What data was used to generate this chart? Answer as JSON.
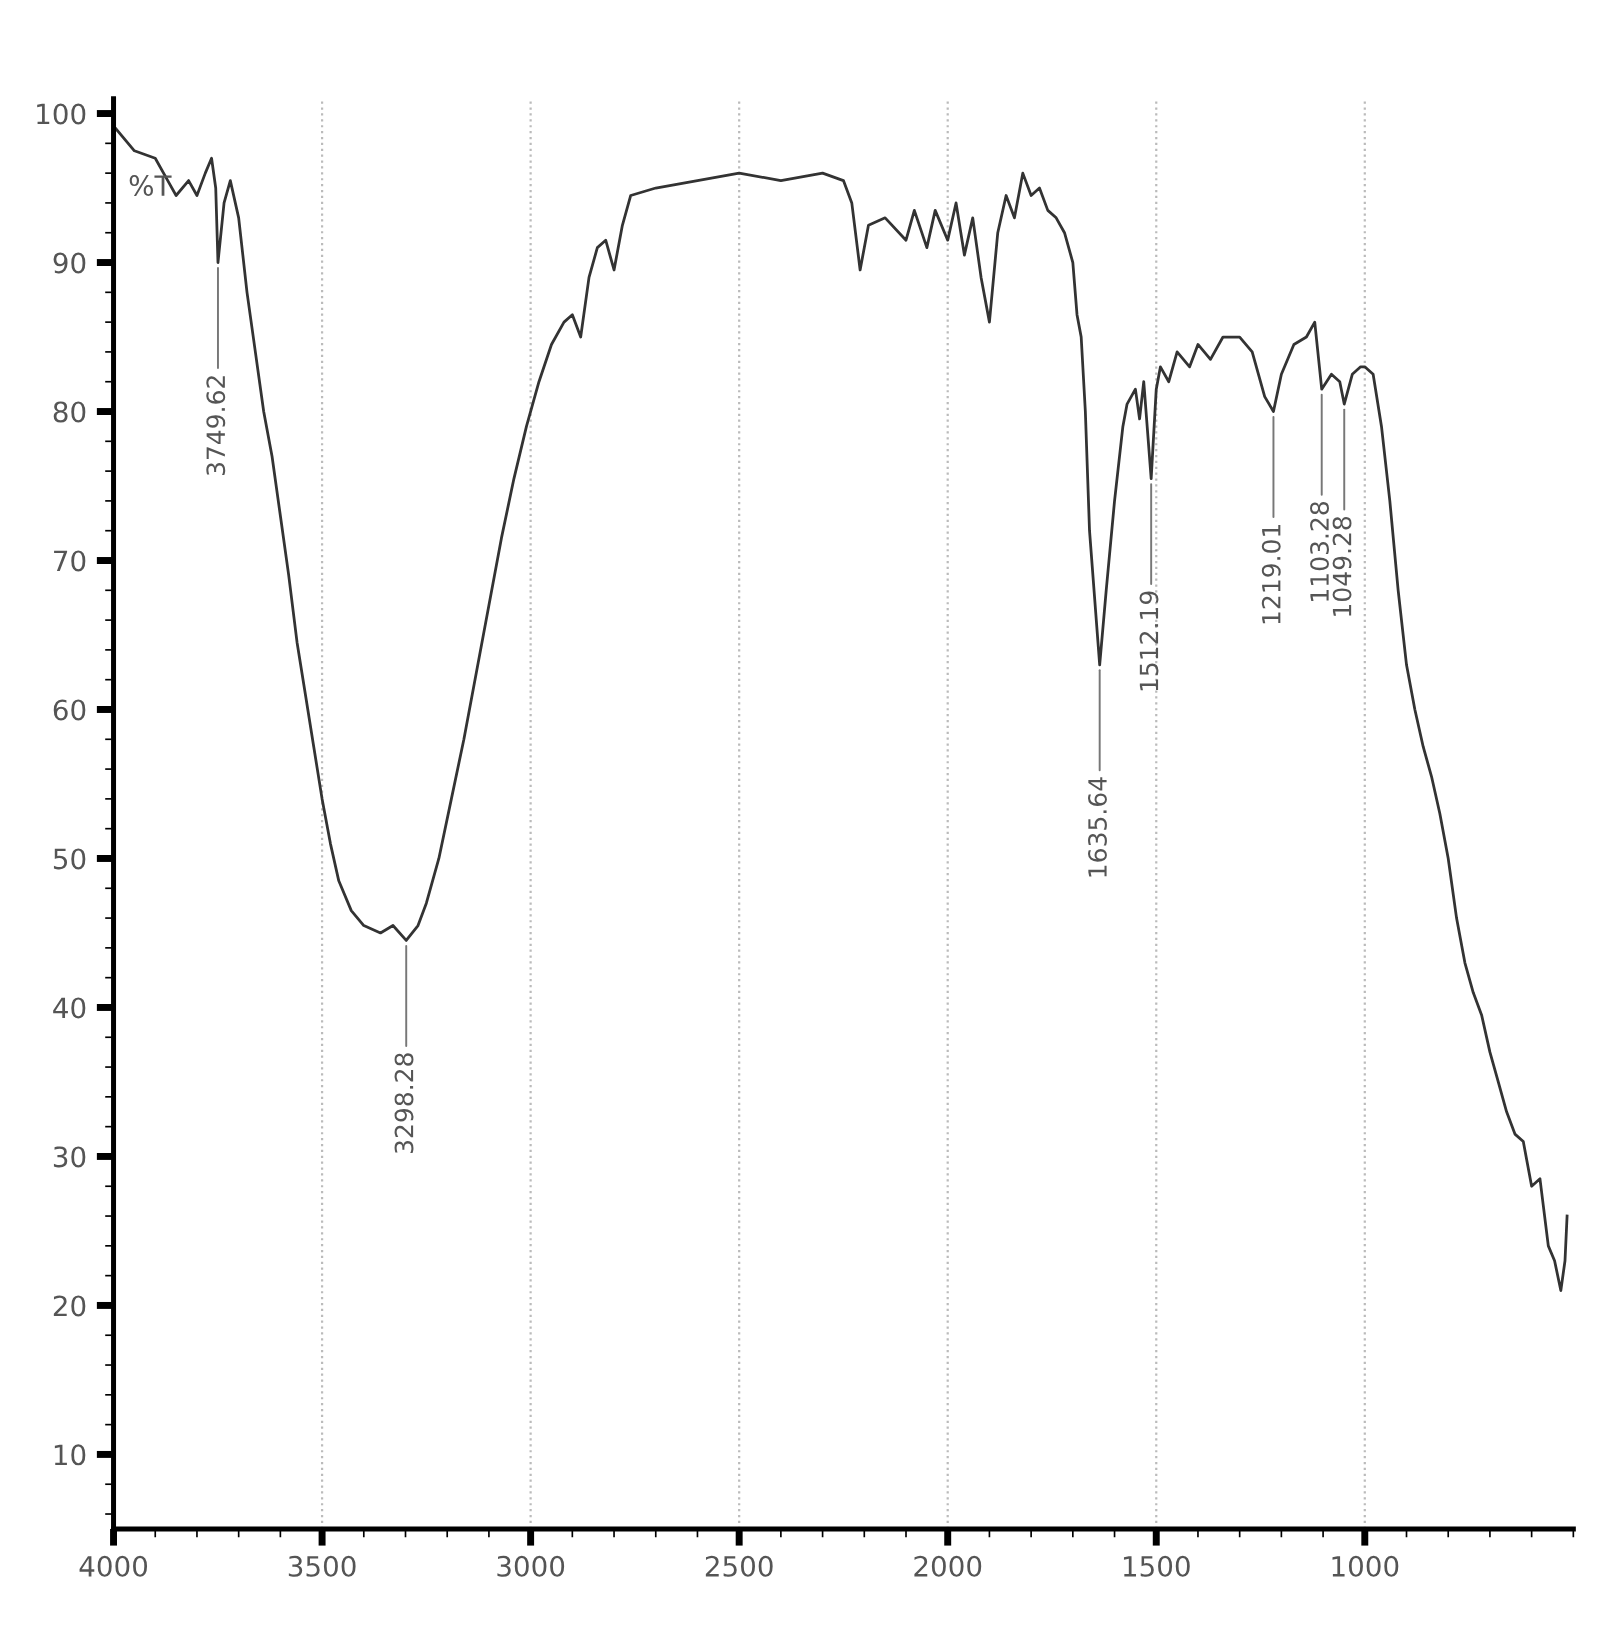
{
  "chart_data": {
    "type": "line",
    "ylabel": "%T",
    "xlim": [
      4000,
      500
    ],
    "ylim": [
      5,
      101
    ],
    "xticks": [
      4000,
      3500,
      3000,
      2500,
      2000,
      1500,
      1000
    ],
    "yticks": [
      10,
      20,
      30,
      40,
      50,
      60,
      70,
      80,
      90,
      100
    ],
    "grid": "x",
    "marker": "none",
    "line_style": "solid",
    "series": [
      {
        "color": "#333333",
        "x": [
          3995,
          3950,
          3900,
          3870,
          3850,
          3820,
          3800,
          3780,
          3765,
          3755,
          3749.62,
          3735,
          3720,
          3700,
          3680,
          3660,
          3640,
          3620,
          3600,
          3580,
          3560,
          3540,
          3520,
          3500,
          3480,
          3460,
          3430,
          3400,
          3360,
          3330,
          3298.28,
          3270,
          3250,
          3220,
          3190,
          3160,
          3130,
          3100,
          3070,
          3040,
          3010,
          2980,
          2950,
          2920,
          2900,
          2880,
          2860,
          2840,
          2820,
          2800,
          2780,
          2760,
          2700,
          2600,
          2500,
          2400,
          2300,
          2250,
          2230,
          2210,
          2190,
          2150,
          2100,
          2080,
          2050,
          2030,
          2000,
          1980,
          1960,
          1940,
          1920,
          1900,
          1880,
          1860,
          1840,
          1820,
          1800,
          1780,
          1760,
          1740,
          1720,
          1700,
          1690,
          1680,
          1670,
          1660,
          1635.64,
          1620,
          1600,
          1580,
          1570,
          1550,
          1540,
          1530,
          1512.19,
          1500,
          1490,
          1470,
          1450,
          1420,
          1400,
          1370,
          1340,
          1300,
          1270,
          1240,
          1219.01,
          1200,
          1170,
          1140,
          1120,
          1103.28,
          1080,
          1060,
          1049.28,
          1030,
          1010,
          1000,
          980,
          960,
          940,
          920,
          900,
          880,
          860,
          840,
          820,
          800,
          780,
          760,
          740,
          720,
          700,
          680,
          660,
          640,
          620,
          600,
          580,
          560,
          545,
          530,
          520,
          515
        ],
        "values": [
          99,
          97.5,
          97,
          95.5,
          94.5,
          95.5,
          94.5,
          96,
          97,
          95,
          90,
          94,
          95.5,
          93,
          88,
          84,
          80,
          77,
          73,
          69,
          64.5,
          61,
          57.5,
          54,
          51,
          48.5,
          46.5,
          45.5,
          45,
          45.5,
          44.5,
          45.5,
          47,
          50,
          54,
          58,
          62.5,
          67,
          71.5,
          75.5,
          79,
          82,
          84.5,
          86,
          86.5,
          85,
          89,
          91,
          91.5,
          89.5,
          92.5,
          94.5,
          95,
          95.5,
          96,
          95.5,
          96,
          95.5,
          94,
          89.5,
          92.5,
          93,
          91.5,
          93.5,
          91,
          93.5,
          91.5,
          94,
          90.5,
          93,
          89,
          86,
          92,
          94.5,
          93,
          96,
          94.5,
          95,
          93.5,
          93,
          92,
          90,
          86.5,
          85,
          80,
          72,
          63,
          68,
          74,
          79,
          80.5,
          81.5,
          79.5,
          82,
          75.5,
          81.5,
          83,
          82,
          84,
          83,
          84.5,
          83.5,
          85,
          85,
          84,
          81,
          80,
          82.5,
          84.5,
          85,
          86,
          81.5,
          82.5,
          82,
          80.5,
          82.5,
          83,
          83,
          82.5,
          79,
          74,
          68,
          63,
          60,
          57.5,
          55.5,
          53,
          50,
          46,
          43,
          41,
          39.5,
          37,
          35,
          33,
          31.5,
          31,
          28,
          28.5,
          24,
          23,
          21,
          23,
          26
        ]
      }
    ],
    "annotations": [
      {
        "text": "3749.62",
        "x": 3749.62,
        "y": 90
      },
      {
        "text": "3298.28",
        "x": 3298.28,
        "y": 44.5
      },
      {
        "text": "1635.64",
        "x": 1635.64,
        "y": 63
      },
      {
        "text": "1512.19",
        "x": 1512.19,
        "y": 75.5
      },
      {
        "text": "1219.01",
        "x": 1219.01,
        "y": 80
      },
      {
        "text": "1103.28",
        "x": 1103.28,
        "y": 81.5
      },
      {
        "text": "1049.28",
        "x": 1049.28,
        "y": 80.5
      }
    ]
  }
}
